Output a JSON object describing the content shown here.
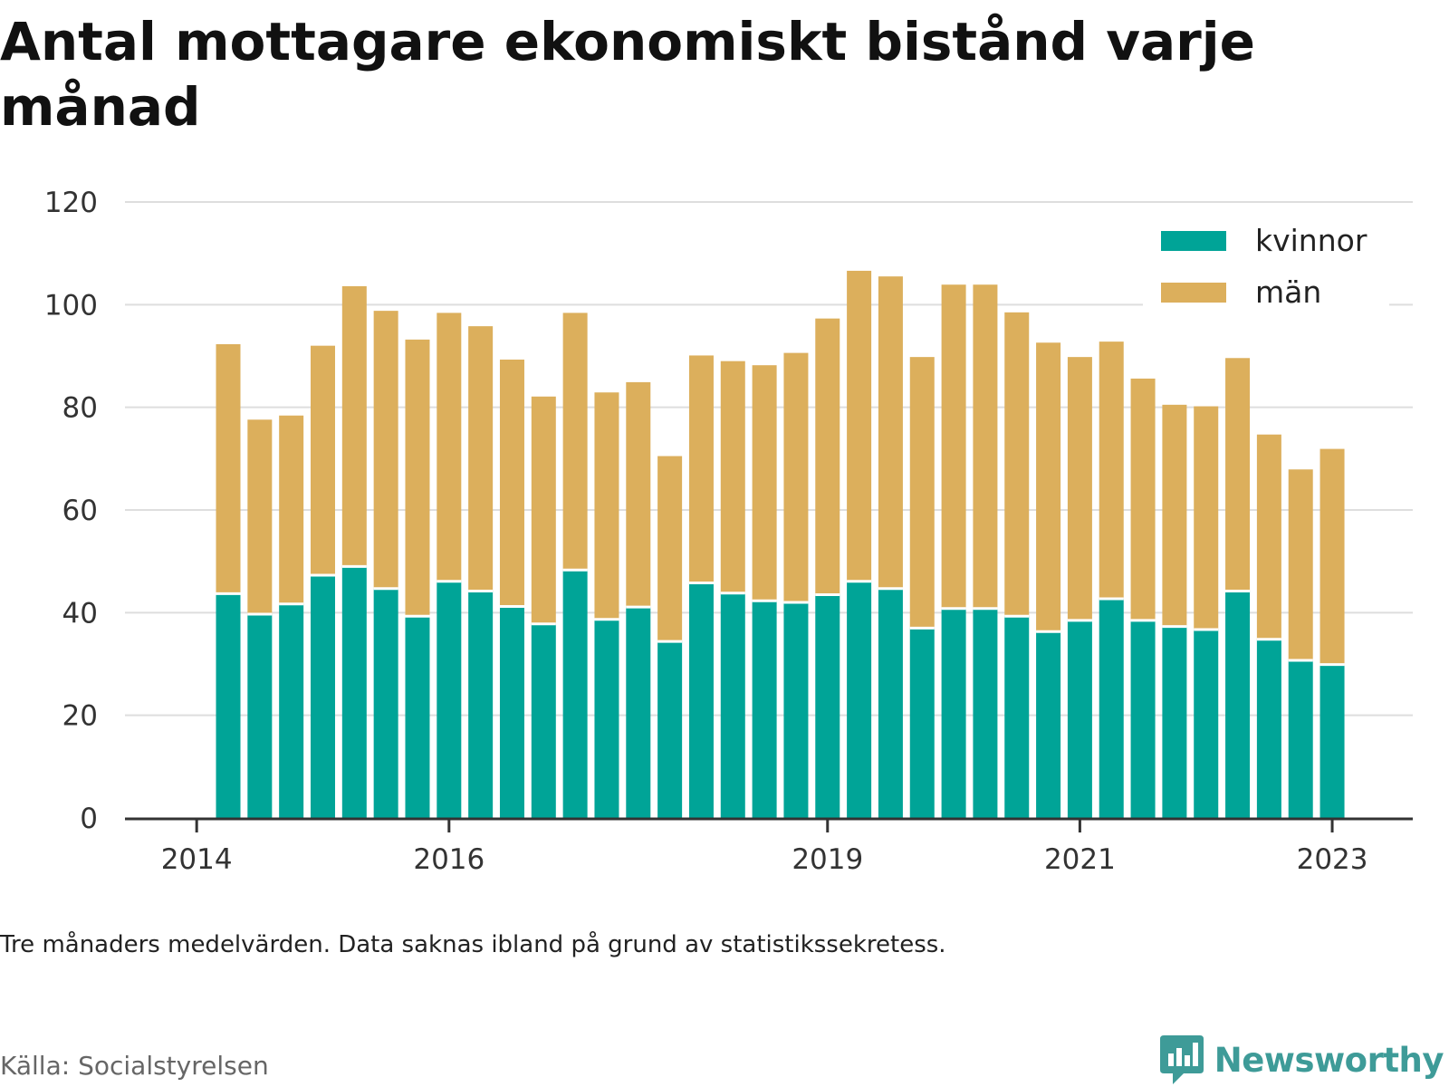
{
  "title": "Antal mottagare ekonomiskt bistånd varje månad",
  "note": "Tre månaders medelvärden. Data saknas ibland på grund av statistikssekretess.",
  "source": "Källa: Socialstyrelsen",
  "brand": "Newsworthy",
  "colors": {
    "kvinnor": "#00a497",
    "man": "#dcaf5c",
    "brand": "#3e9b98"
  },
  "chart_data": {
    "type": "bar",
    "stacked": true,
    "title": "Antal mottagare ekonomiskt bistånd varje månad",
    "xlabel": "",
    "ylabel": "",
    "ylim": [
      0,
      120
    ],
    "yticks": [
      0,
      20,
      40,
      60,
      80,
      100,
      120
    ],
    "grid": true,
    "legend_position": "top-right",
    "xtick_labels": [
      {
        "label": "2014",
        "category_index": -1
      },
      {
        "label": "2016",
        "category_index": 7
      },
      {
        "label": "2019",
        "category_index": 19
      },
      {
        "label": "2021",
        "category_index": 27
      },
      {
        "label": "2023",
        "category_index": 35
      }
    ],
    "series": [
      {
        "name": "kvinnor",
        "values": [
          43.7,
          39.7,
          41.7,
          47.3,
          49,
          44.7,
          39.3,
          46.1,
          44.2,
          41.2,
          37.8,
          48.3,
          38.7,
          41.1,
          34.4,
          45.8,
          43.8,
          42.3,
          42,
          43.5,
          46.1,
          44.7,
          37,
          40.8,
          40.8,
          39.3,
          36.3,
          38.5,
          42.7,
          38.5,
          37.3,
          36.7,
          44.2,
          34.8,
          30.7,
          29.9
        ]
      },
      {
        "name": "män",
        "values": [
          48.6,
          37.9,
          36.7,
          44.7,
          54.6,
          54.1,
          53.9,
          52.3,
          51.6,
          48.1,
          44.3,
          50.1,
          44.2,
          43.8,
          36.1,
          44.3,
          45.2,
          45.9,
          48.6,
          53.8,
          60.5,
          60.8,
          52.8,
          63.1,
          63.1,
          59.2,
          56.3,
          51.3,
          50.1,
          47.1,
          43.2,
          43.5,
          45.4,
          39.9,
          37.2,
          42
        ]
      }
    ]
  }
}
